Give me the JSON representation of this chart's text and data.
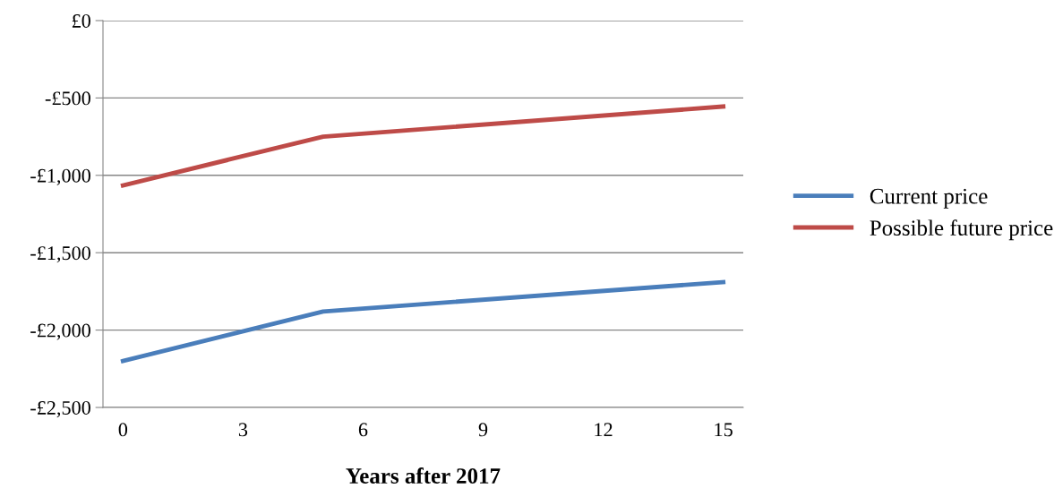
{
  "chart_data": {
    "type": "line",
    "xlabel": "Years after 2017",
    "series": [
      {
        "name": "Current price",
        "color": "#4a7ebb",
        "x": [
          0,
          5,
          15
        ],
        "values": [
          -2200,
          -1880,
          -1690
        ]
      },
      {
        "name": "Possible future price",
        "color": "#be4b48",
        "x": [
          0,
          5,
          15
        ],
        "values": [
          -1065,
          -750,
          -555
        ]
      }
    ],
    "xlim": [
      -0.5,
      15.5
    ],
    "xticks": [
      0,
      3,
      6,
      9,
      12,
      15
    ],
    "ylim": [
      -2500,
      0
    ],
    "yticks": [
      {
        "value": 0,
        "label": "£0"
      },
      {
        "value": -500,
        "label": "-£500"
      },
      {
        "value": -1000,
        "label": "-£1,000"
      },
      {
        "value": -1500,
        "label": "-£1,500"
      },
      {
        "value": -2000,
        "label": "-£2,000"
      },
      {
        "value": -2500,
        "label": "-£2,500"
      }
    ],
    "grid": "y",
    "legend": "right",
    "marker": "none",
    "line_style": "solid"
  }
}
